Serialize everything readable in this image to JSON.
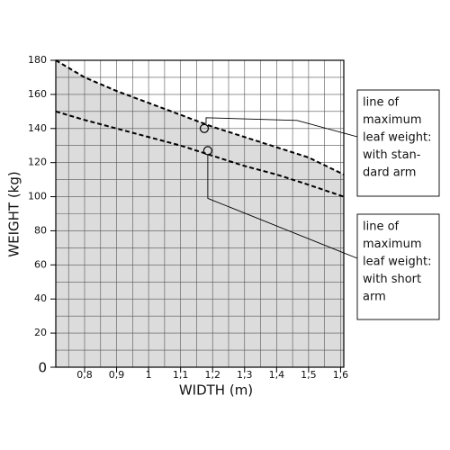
{
  "chart_data": {
    "type": "line",
    "xlabel": "WIDTH (m)",
    "ylabel": "WEIGHT (kg)",
    "xlim": [
      0.71,
      1.61
    ],
    "ylim": [
      0,
      180
    ],
    "xticks": [
      {
        "value": 0.8,
        "label": "0,8"
      },
      {
        "value": 0.9,
        "label": "0,9"
      },
      1,
      {
        "value": 1.1,
        "label": "1,1"
      },
      {
        "value": 1.2,
        "label": "1,2"
      },
      {
        "value": 1.3,
        "label": "1,3"
      },
      {
        "value": 1.4,
        "label": "1,4"
      },
      {
        "value": 1.5,
        "label": "1,5"
      },
      {
        "value": 1.6,
        "label": "1,6"
      }
    ],
    "yticks": [
      0,
      20,
      40,
      60,
      80,
      100,
      120,
      140,
      160,
      180
    ],
    "grid": true,
    "x": [
      0.71,
      0.8,
      0.9,
      1.0,
      1.1,
      1.2,
      1.3,
      1.4,
      1.5,
      1.61
    ],
    "series": [
      {
        "name": "line of maximum leaf weight: with standard arm",
        "color": "#000000",
        "fill": "#dcdcdc",
        "values": [
          180,
          170,
          162,
          155,
          148,
          141,
          135,
          129,
          123,
          113
        ]
      },
      {
        "name": "line of maximum leaf weight: with short arm",
        "color": "#000000",
        "values": [
          150,
          145,
          140,
          135,
          130,
          124,
          118,
          113,
          107,
          100
        ]
      }
    ],
    "annotations": [
      {
        "x": 1.174,
        "y": 140,
        "lines": [
          "line of",
          "maximum",
          "leaf weight:",
          "with stan-",
          "dard arm"
        ]
      },
      {
        "x": 1.185,
        "y": 127,
        "lines": [
          "line of",
          "maximum",
          "leaf weight:",
          "with short",
          "arm"
        ]
      }
    ]
  }
}
